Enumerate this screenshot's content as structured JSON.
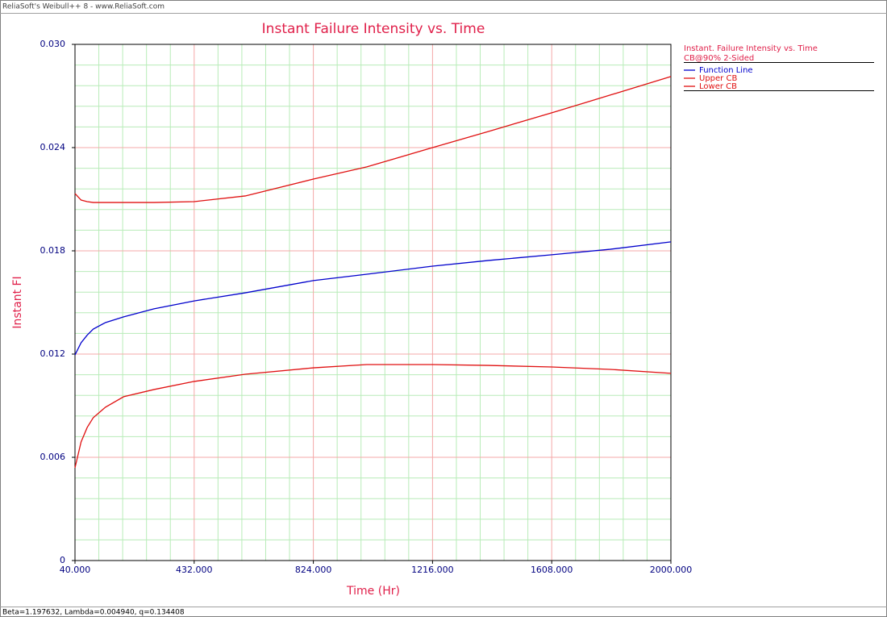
{
  "header": "ReliaSoft's Weibull++ 8 - www.ReliaSoft.com",
  "footer": "Beta=1.197632, Lambda=0.004940, q=0.134408",
  "chart_data": {
    "type": "line",
    "title": "Instant Failure Intensity vs. Time",
    "x_label": "Time (Hr)",
    "y_label": "Instant FI",
    "legend_title": [
      "Instant. Failure Intensity vs. Time",
      "CB@90% 2-Sided"
    ],
    "legend_position": "right",
    "grid": true,
    "minor_grid_divisions": 5,
    "xlim": [
      40,
      2000
    ],
    "xticks": [
      {
        "value": 40,
        "label": "40.000"
      },
      {
        "value": 432,
        "label": "432.000"
      },
      {
        "value": 824,
        "label": "824.000"
      },
      {
        "value": 1216,
        "label": "1216.000"
      },
      {
        "value": 1608,
        "label": "1608.000"
      },
      {
        "value": 2000,
        "label": "2000.000"
      }
    ],
    "ylim": [
      0,
      0.03
    ],
    "yticks": [
      0,
      0.006,
      0.012,
      0.018,
      0.024,
      {
        "value": 0.03,
        "label": "0.030"
      }
    ],
    "x": [
      40,
      60,
      80,
      100,
      140,
      200,
      300,
      432,
      600,
      824,
      1000,
      1216,
      1400,
      1608,
      1800,
      2000
    ],
    "series": [
      {
        "name": "Function Line",
        "color": "#0000cc",
        "values": [
          0.01195,
          0.01266,
          0.0131,
          0.01345,
          0.01383,
          0.01416,
          0.01463,
          0.01509,
          0.01556,
          0.01627,
          0.01664,
          0.01711,
          0.01744,
          0.01777,
          0.01809,
          0.01852
        ]
      },
      {
        "name": "Upper CB",
        "color": "#e01010",
        "values": [
          0.02133,
          0.02095,
          0.02086,
          0.02081,
          0.02081,
          0.02081,
          0.02081,
          0.02086,
          0.02119,
          0.02217,
          0.02288,
          0.024,
          0.02494,
          0.02602,
          0.02705,
          0.02813
        ]
      },
      {
        "name": "Lower CB",
        "color": "#e01010",
        "values": [
          0.00539,
          0.00689,
          0.00773,
          0.0083,
          0.00891,
          0.00952,
          0.00994,
          0.01041,
          0.01083,
          0.0112,
          0.01139,
          0.01139,
          0.01134,
          0.01125,
          0.01111,
          0.01088
        ]
      }
    ]
  }
}
